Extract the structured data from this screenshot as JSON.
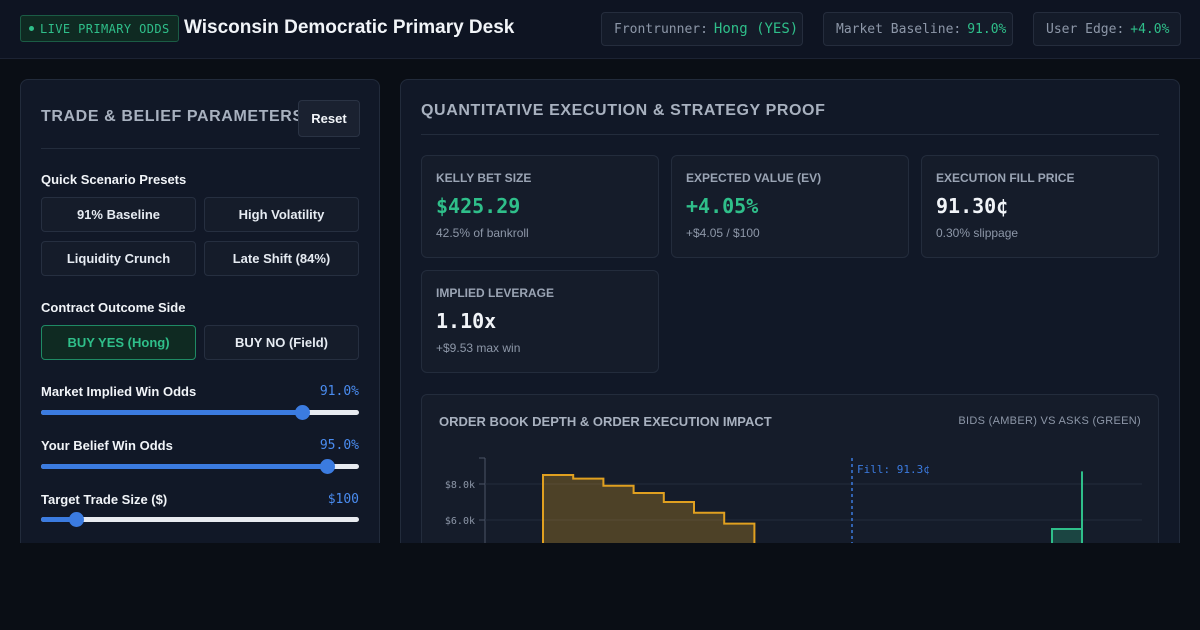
{
  "header": {
    "live_badge": "LIVE PRIMARY ODDS",
    "title": "Wisconsin Democratic Primary Desk",
    "pills": [
      {
        "label": "Frontrunner:",
        "value": "Hong (YES)"
      },
      {
        "label": "Market Baseline:",
        "value": "91.0%"
      },
      {
        "label": "User Edge:",
        "value": "+4.0%"
      }
    ]
  },
  "left": {
    "title": "TRADE & BELIEF PARAMETERS",
    "reset_label": "Reset",
    "presets_label": "Quick Scenario Presets",
    "presets": [
      "91% Baseline",
      "High Volatility",
      "Liquidity Crunch",
      "Late Shift (84%)"
    ],
    "side_label": "Contract Outcome Side",
    "sides": [
      "BUY YES (Hong)",
      "BUY NO (Field)"
    ],
    "sliders": [
      {
        "label": "Market Implied Win Odds",
        "value": "91.0%",
        "fraction": 0.82
      },
      {
        "label": "Your Belief Win Odds",
        "value": "95.0%",
        "fraction": 0.9
      },
      {
        "label": "Target Trade Size ($)",
        "value": "$100",
        "fraction": 0.11
      }
    ]
  },
  "right": {
    "title": "QUANTITATIVE EXECUTION & STRATEGY PROOF",
    "cards": [
      {
        "label": "KELLY BET SIZE",
        "value": "$425.29",
        "sub": "42.5% of bankroll"
      },
      {
        "label": "EXPECTED VALUE (EV)",
        "value": "+4.05%",
        "sub": "+$4.05 / $100"
      },
      {
        "label": "EXECUTION FILL PRICE",
        "value": "91.30¢",
        "sub": "0.30% slippage"
      },
      {
        "label": "IMPLIED LEVERAGE",
        "value": "1.10x",
        "sub": "+$9.53 max win"
      }
    ],
    "chart": {
      "title": "ORDER BOOK DEPTH & ORDER EXECUTION IMPACT",
      "legend": "BIDS (AMBER) VS ASKS (GREEN)",
      "fill_label": "Fill: 91.3¢"
    }
  },
  "colors": {
    "accent_green": "#2fbf8a",
    "accent_blue": "#3b7be0",
    "amber": "#e0a020"
  },
  "chart_data": {
    "type": "area",
    "title": "ORDER BOOK DEPTH & ORDER EXECUTION IMPACT",
    "y_tick_labels": [
      "$8.0k",
      "$6.0k"
    ],
    "y_ticks": [
      8000,
      6000
    ],
    "series": [
      {
        "name": "BIDS (AMBER)",
        "values": [
          8500,
          8300,
          7900,
          7500,
          7000,
          6400,
          5800
        ]
      },
      {
        "name": "ASKS (GREEN)",
        "values": [
          5500,
          8700
        ]
      }
    ],
    "annotations": [
      "Fill: 91.3¢"
    ]
  }
}
